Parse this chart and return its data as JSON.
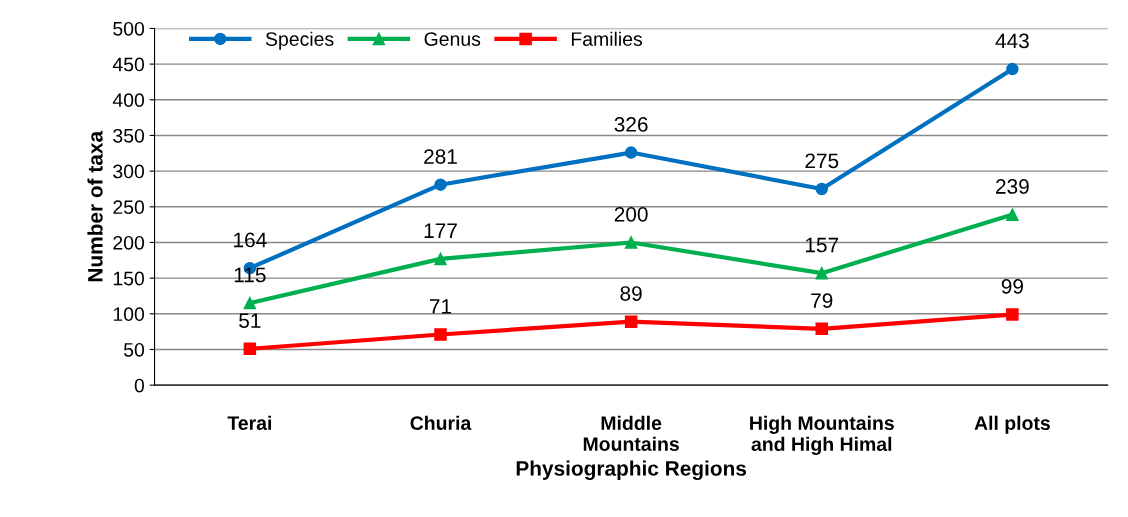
{
  "chart_data": {
    "type": "line",
    "xlabel": "Physiographic Regions",
    "ylabel": "Number of taxa",
    "categories": [
      "Terai",
      "Churia",
      "Middle\nMountains",
      "High Mountains\nand High Himal",
      "All plots"
    ],
    "series": [
      {
        "name": "Species",
        "color": "#0070c0",
        "marker": "circle",
        "values": [
          164,
          281,
          326,
          275,
          443
        ]
      },
      {
        "name": "Genus",
        "color": "#00b050",
        "marker": "triangle",
        "values": [
          115,
          177,
          200,
          157,
          239
        ]
      },
      {
        "name": "Families",
        "color": "#ff0000",
        "marker": "square",
        "values": [
          51,
          71,
          89,
          79,
          99
        ]
      }
    ],
    "ylim": [
      0,
      500
    ],
    "yticks": [
      0,
      50,
      100,
      150,
      200,
      250,
      300,
      350,
      400,
      450,
      500
    ],
    "grid": "y",
    "legend": "top left",
    "data_labels": true,
    "line_style": "solid"
  }
}
